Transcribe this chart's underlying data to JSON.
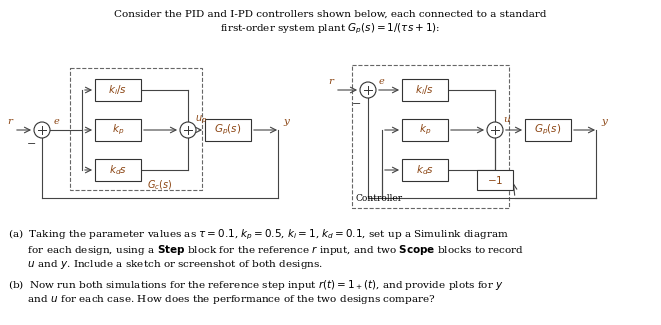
{
  "bg_color": "#ffffff",
  "line_color": "#444444",
  "dash_color": "#666666",
  "math_color": "#8B4513",
  "text_color": "#000000",
  "box_ec": "#333333",
  "title1": "Consider the PID and I-PD controllers shown below, each connected to a standard",
  "title2": "first-order system plant $G_p(s) = 1/(\\tau s+1)$:",
  "ta1": "(a)  Taking the parameter values as $\\tau = 0.1$, $k_p = 0.5$, $k_i = 1$, $k_d = 0.1$, set up a Simulink diagram",
  "ta2": "      for each design, using a \\textbf{Step} block for the reference $r$ input, and two \\textbf{Scope} blocks to record",
  "ta3": "      $u$ and $y$. Include a sketch or screenshot of both designs.",
  "tb1": "(b)  Now run both simulations for the reference step input $r(t) = 1_+(t)$, and provide plots for $y$",
  "tb2": "      and $u$ for each case. How does the performance of the two designs compare?"
}
